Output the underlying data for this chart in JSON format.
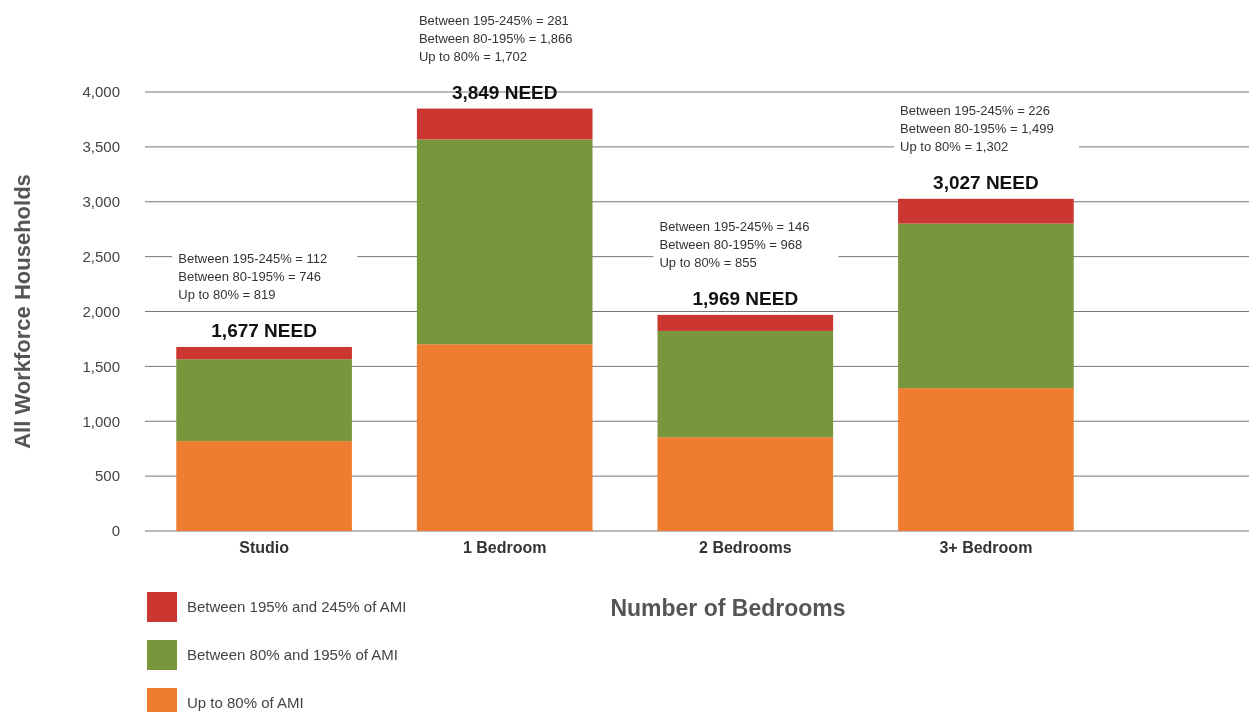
{
  "chart_data": {
    "type": "bar",
    "stacked": true,
    "xlabel": "Number of Bedrooms",
    "ylabel": "All Workforce Households",
    "categories": [
      "Studio",
      "1 Bedroom",
      "2 Bedrooms",
      "3+ Bedroom"
    ],
    "series": [
      {
        "name": "Up to 80% of AMI",
        "color": "#ee7d31",
        "values": [
          819,
          1702,
          855,
          1302
        ]
      },
      {
        "name": "Between 80% and 195% of AMI",
        "color": "#78963c",
        "values": [
          746,
          1866,
          968,
          1499
        ]
      },
      {
        "name": "Between 195% and 245% of AMI",
        "color": "#cc3631",
        "values": [
          112,
          281,
          146,
          226
        ]
      }
    ],
    "totals": [
      "1,677 NEED",
      "3,849 NEED",
      "1,969 NEED",
      "3,027 NEED"
    ],
    "annotations": [
      "Between 195-245% = 112",
      "Between 80-195% = 746",
      "Up to 80% = 819",
      "Between 195-245% = 281",
      "Between 80-195% = 1,866",
      "Up to 80% = 1,702",
      "Between 195-245% = 146",
      "Between 80-195% = 968",
      "Up to 80% = 855",
      "Between 195-245% = 226",
      "Between 80-195% = 1,499",
      "Up to 80% = 1,302"
    ],
    "ylim": [
      0,
      4000
    ],
    "yticks": [
      {
        "value": 0,
        "label": "0"
      },
      {
        "value": 500,
        "label": "500"
      },
      {
        "value": 1000,
        "label": "1,000"
      },
      {
        "value": 1500,
        "label": "1,500"
      },
      {
        "value": 2000,
        "label": "2,000"
      },
      {
        "value": 2500,
        "label": "2,500"
      },
      {
        "value": 3000,
        "label": "3,000"
      },
      {
        "value": 3500,
        "label": "3,500"
      },
      {
        "value": 4000,
        "label": "4,000"
      }
    ],
    "grid": "y",
    "legend": "bottom left"
  }
}
